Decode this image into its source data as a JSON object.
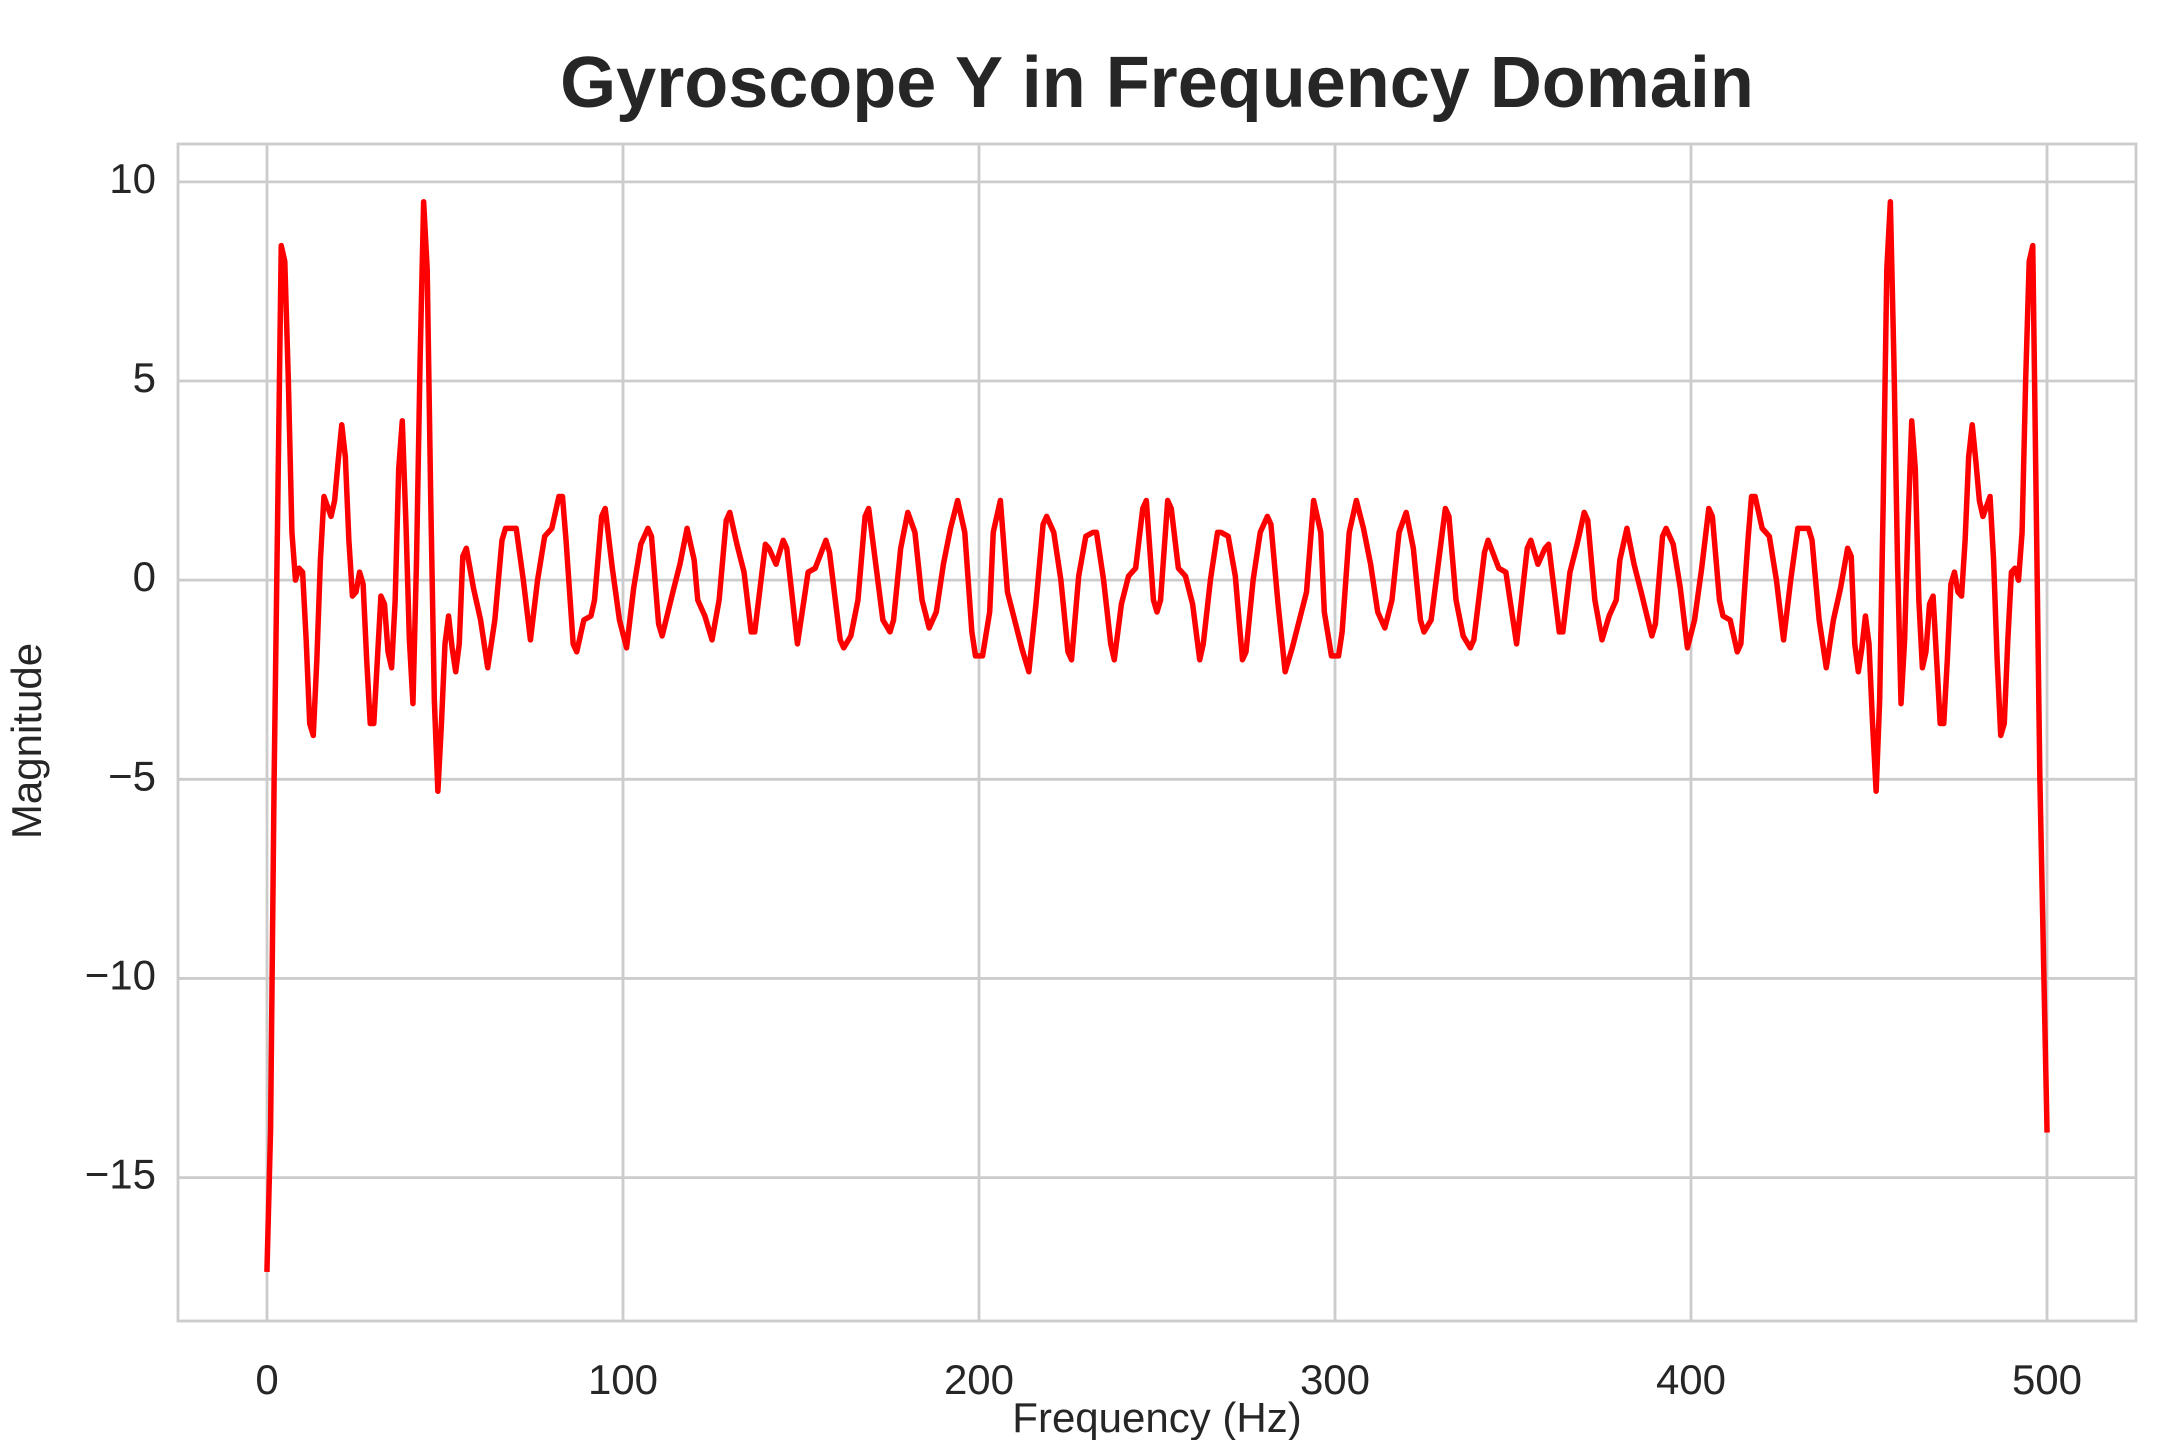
{
  "chart_data": {
    "type": "line",
    "title": "Gyroscope Y in Frequency Domain",
    "x_label": "Frequency (Hz)",
    "y_label": "Magnitude",
    "color": "#ff0000",
    "grid": true,
    "xlim": [
      -25,
      525
    ],
    "ylim": [
      -18.6,
      10.95
    ],
    "xticks": [
      0,
      100,
      200,
      300,
      400,
      500
    ],
    "yticks": [
      {
        "value": -15,
        "label": "−15"
      },
      {
        "value": -10,
        "label": "−10"
      },
      {
        "value": -5,
        "label": "−5"
      },
      0,
      5,
      10
    ],
    "x": [
      0,
      1,
      2,
      4,
      5,
      6,
      7,
      8,
      9,
      10,
      11,
      12,
      13,
      14,
      15,
      16,
      18,
      19,
      20,
      21,
      22,
      23,
      24,
      25,
      26,
      27,
      28,
      29,
      30,
      31,
      32,
      33,
      34,
      35,
      36,
      37,
      38,
      39,
      40,
      41,
      42,
      43,
      44,
      45,
      46,
      47,
      48,
      49,
      50,
      51,
      52,
      53,
      54,
      55,
      56,
      58,
      60,
      62,
      64,
      66,
      67,
      70,
      72,
      74,
      76,
      78,
      80,
      82,
      83,
      84,
      86,
      87,
      89,
      91,
      92,
      94,
      95,
      97,
      99,
      101,
      103,
      105,
      107,
      108,
      110,
      111,
      114,
      116,
      118,
      120,
      121,
      123,
      125,
      127,
      129,
      130,
      132,
      134,
      136,
      137,
      140,
      141,
      143,
      145,
      146,
      149,
      152,
      154,
      157,
      158,
      161,
      162,
      164,
      166,
      168,
      169,
      171,
      173,
      175,
      176,
      178,
      180,
      182,
      184,
      186,
      188,
      190,
      192,
      194,
      196,
      198,
      199,
      201,
      203,
      204,
      206,
      208,
      210,
      212,
      214,
      216,
      218,
      219,
      221,
      223,
      225,
      226,
      228,
      230,
      232,
      233,
      235,
      237,
      238,
      240,
      242,
      244,
      246,
      247,
      249,
      250,
      251,
      253,
      254,
      256,
      258,
      260,
      262,
      263,
      265,
      267,
      268,
      270,
      272,
      274,
      275,
      277,
      279,
      281,
      282,
      284,
      286,
      288,
      290,
      292,
      294,
      296,
      297,
      299,
      301,
      302,
      304,
      306,
      308,
      310,
      312,
      314,
      316,
      318,
      320,
      322,
      324,
      325,
      327,
      329,
      331,
      332,
      334,
      336,
      338,
      339,
      342,
      343,
      346,
      348,
      351,
      354,
      355,
      357,
      359,
      360,
      363,
      364,
      366,
      368,
      370,
      371,
      373,
      375,
      377,
      379,
      380,
      382,
      384,
      386,
      389,
      390,
      392,
      393,
      395,
      397,
      399,
      401,
      403,
      405,
      406,
      408,
      409,
      411,
      413,
      414,
      416,
      417,
      418,
      420,
      422,
      424,
      426,
      428,
      430,
      433,
      434,
      436,
      438,
      440,
      442,
      444,
      445,
      446,
      447,
      448,
      449,
      450,
      451,
      452,
      453,
      454,
      455,
      456,
      457,
      458,
      459,
      460,
      461,
      462,
      463,
      464,
      465,
      466,
      467,
      468,
      469,
      470,
      471,
      472,
      473,
      474,
      475,
      476,
      477,
      478,
      479,
      480,
      481,
      482,
      484,
      485,
      486,
      487,
      488,
      489,
      490,
      491,
      492,
      493,
      494,
      495,
      496,
      498,
      500
    ],
    "values": [
      -17.3,
      -13.8,
      -5,
      8.4,
      8.0,
      5,
      1.2,
      0,
      0.3,
      0.2,
      -1.5,
      -3.6,
      -3.9,
      -2,
      0.5,
      2.1,
      1.6,
      2.0,
      3.0,
      3.9,
      3.1,
      1.0,
      -0.4,
      -0.3,
      0.2,
      -0.1,
      -2,
      -3.6,
      -3.6,
      -2,
      -0.4,
      -0.6,
      -1.8,
      -2.2,
      -0.5,
      2.8,
      4.0,
      1.5,
      -1.5,
      -3.1,
      0.5,
      5.5,
      9.5,
      7.8,
      2,
      -3,
      -5.3,
      -3.6,
      -1.6,
      -0.9,
      -1.7,
      -2.3,
      -1.6,
      0.6,
      0.8,
      -0.2,
      -1,
      -2.2,
      -1,
      1,
      1.3,
      1.3,
      0,
      -1.5,
      0,
      1.1,
      1.3,
      2.1,
      2.1,
      1,
      -1.6,
      -1.8,
      -1.0,
      -0.9,
      -0.5,
      1.6,
      1.8,
      0.3,
      -1.0,
      -1.7,
      -0.2,
      0.9,
      1.3,
      1.1,
      -1.1,
      -1.4,
      -0.3,
      0.4,
      1.3,
      0.5,
      -0.5,
      -0.9,
      -1.5,
      -0.5,
      1.5,
      1.7,
      0.9,
      0.2,
      -1.3,
      -1.3,
      0.9,
      0.8,
      0.4,
      1.0,
      0.8,
      -1.6,
      0.2,
      0.3,
      1.0,
      0.7,
      -1.5,
      -1.7,
      -1.4,
      -0.5,
      1.6,
      1.8,
      0.4,
      -1.0,
      -1.3,
      -1.0,
      0.8,
      1.7,
      1.2,
      -0.5,
      -1.2,
      -0.8,
      0.4,
      1.3,
      2.0,
      1.2,
      -1.3,
      -1.9,
      -1.9,
      -0.8,
      1.2,
      2.0,
      -0.3,
      -1,
      -1.7,
      -2.3,
      -0.6,
      1.4,
      1.6,
      1.2,
      0.0,
      -1.8,
      -2.0,
      0.1,
      1.1,
      1.2,
      1.2,
      0.0,
      -1.6,
      -2.0,
      -0.6,
      0.1,
      0.3,
      1.8,
      2.0,
      -0.5,
      -0.8,
      -0.5,
      2.0,
      1.8,
      0.3,
      0.1,
      -0.6,
      -2.0,
      -1.6,
      0.0,
      1.2,
      1.2,
      1.1,
      0.1,
      -2.0,
      -1.8,
      0.0,
      1.2,
      1.6,
      1.4,
      -0.6,
      -2.3,
      -1.7,
      -1,
      -0.3,
      2.0,
      1.2,
      -0.8,
      -1.9,
      -1.9,
      -1.3,
      1.2,
      2.0,
      1.3,
      0.4,
      -0.8,
      -1.2,
      -0.5,
      1.2,
      1.7,
      0.8,
      -1.0,
      -1.3,
      -1.0,
      0.4,
      1.8,
      1.6,
      -0.5,
      -1.4,
      -1.7,
      -1.5,
      0.7,
      1.0,
      0.3,
      0.2,
      -1.6,
      0.8,
      1.0,
      0.4,
      0.8,
      0.9,
      -1.3,
      -1.3,
      0.2,
      0.9,
      1.7,
      1.5,
      -0.5,
      -1.5,
      -0.9,
      -0.5,
      0.5,
      1.3,
      0.4,
      -0.3,
      -1.4,
      -1.1,
      1.1,
      1.3,
      0.9,
      -0.2,
      -1.7,
      -1.0,
      0.3,
      1.8,
      1.6,
      -0.5,
      -0.9,
      -1.0,
      -1.8,
      -1.6,
      1,
      2.1,
      2.1,
      1.3,
      1.1,
      0,
      -1.5,
      0,
      1.3,
      1.3,
      1,
      -1,
      -2.2,
      -1,
      -0.2,
      0.8,
      0.6,
      -1.6,
      -2.3,
      -1.7,
      -0.9,
      -1.6,
      -3.6,
      -5.3,
      -3,
      2,
      7.8,
      9.5,
      5.5,
      0.5,
      -3.1,
      -1.5,
      1.5,
      4.0,
      2.8,
      -0.5,
      -2.2,
      -1.8,
      -0.6,
      -0.4,
      -2,
      -3.6,
      -3.6,
      -2,
      -0.1,
      0.2,
      -0.3,
      -0.4,
      1.0,
      3.1,
      3.9,
      3.0,
      2.0,
      1.6,
      2.1,
      0.5,
      -2,
      -3.9,
      -3.6,
      -1.5,
      0.2,
      0.3,
      0,
      1.2,
      5,
      8.0,
      8.4,
      -5,
      -13.8
    ]
  }
}
